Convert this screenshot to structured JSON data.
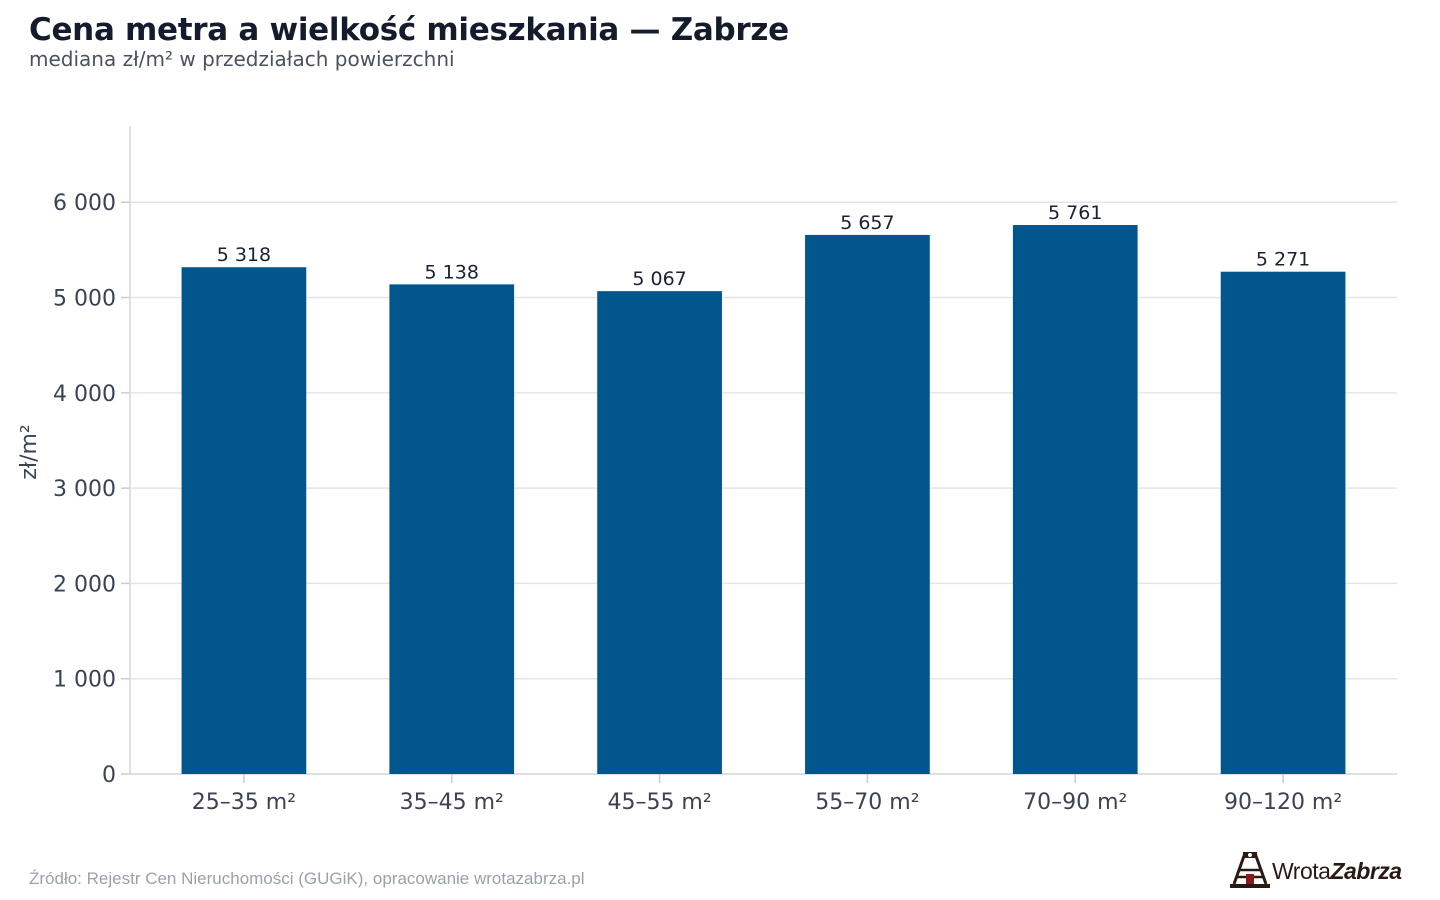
{
  "header": {
    "title": "Cena metra a wielkość mieszkania — Zabrze",
    "subtitle": "mediana zł/m² w przedziałach powierzchni"
  },
  "chart_data": {
    "type": "bar",
    "categories": [
      "25–35 m²",
      "35–45 m²",
      "45–55 m²",
      "55–70 m²",
      "70–90 m²",
      "90–120 m²"
    ],
    "values": [
      5318,
      5138,
      5067,
      5657,
      5761,
      5271
    ],
    "value_labels": [
      "5 318",
      "5 138",
      "5 067",
      "5 657",
      "5 761",
      "5 271"
    ],
    "ylabel": "zł/m²",
    "xlabel": "",
    "yticks": [
      0,
      1000,
      2000,
      3000,
      4000,
      5000,
      6000
    ],
    "ytick_labels": [
      "0",
      "1 000",
      "2 000",
      "3 000",
      "4 000",
      "5 000",
      "6 000"
    ],
    "ylim": [
      0,
      6800
    ],
    "grid": "horizontal",
    "bar_color": "#02568e"
  },
  "footer": {
    "source": "Źródło: Rejestr Cen Nieruchomości (GUGiK), opracowanie wrotazabrza.pl",
    "logo_text_a": "Wrota",
    "logo_text_b": "Zabrza"
  }
}
